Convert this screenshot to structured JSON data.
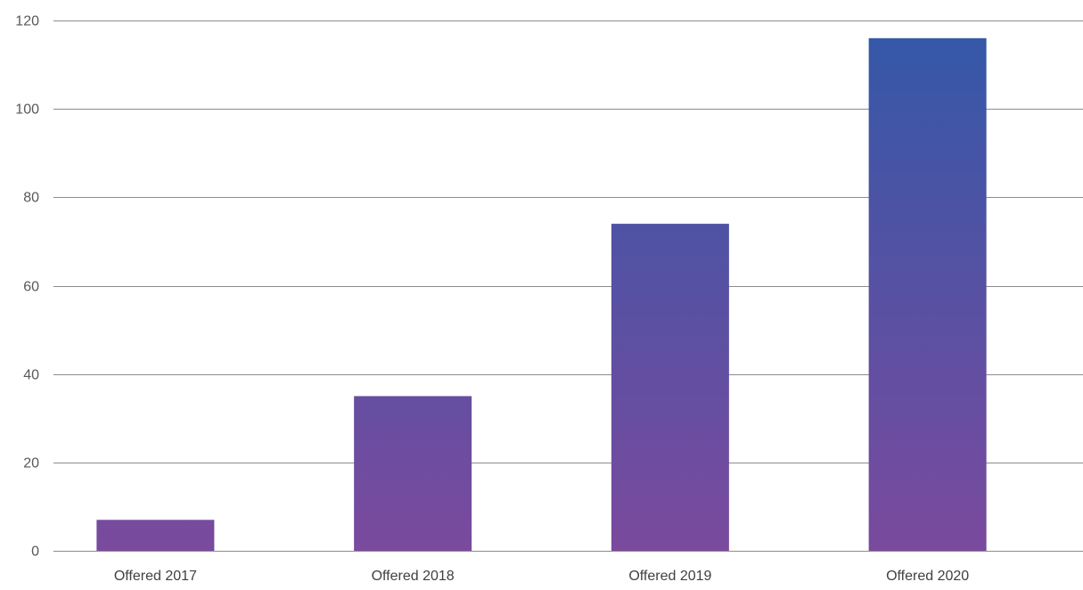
{
  "chart_data": {
    "type": "bar",
    "title": "",
    "xlabel": "",
    "ylabel": "",
    "categories": [
      "Offered 2017",
      "Offered 2018",
      "Offered 2019",
      "Offered 2020"
    ],
    "values": [
      7,
      35,
      74,
      116
    ],
    "ylim": [
      0,
      120
    ],
    "yticks": [
      "0",
      "20",
      "40",
      "60",
      "80",
      "100",
      "120"
    ],
    "grid": true,
    "legend": "none",
    "colors": {
      "bar_bottom": "#7a4a9e",
      "bar_top": "#3358a8",
      "grid": "#8c8c8c"
    }
  }
}
